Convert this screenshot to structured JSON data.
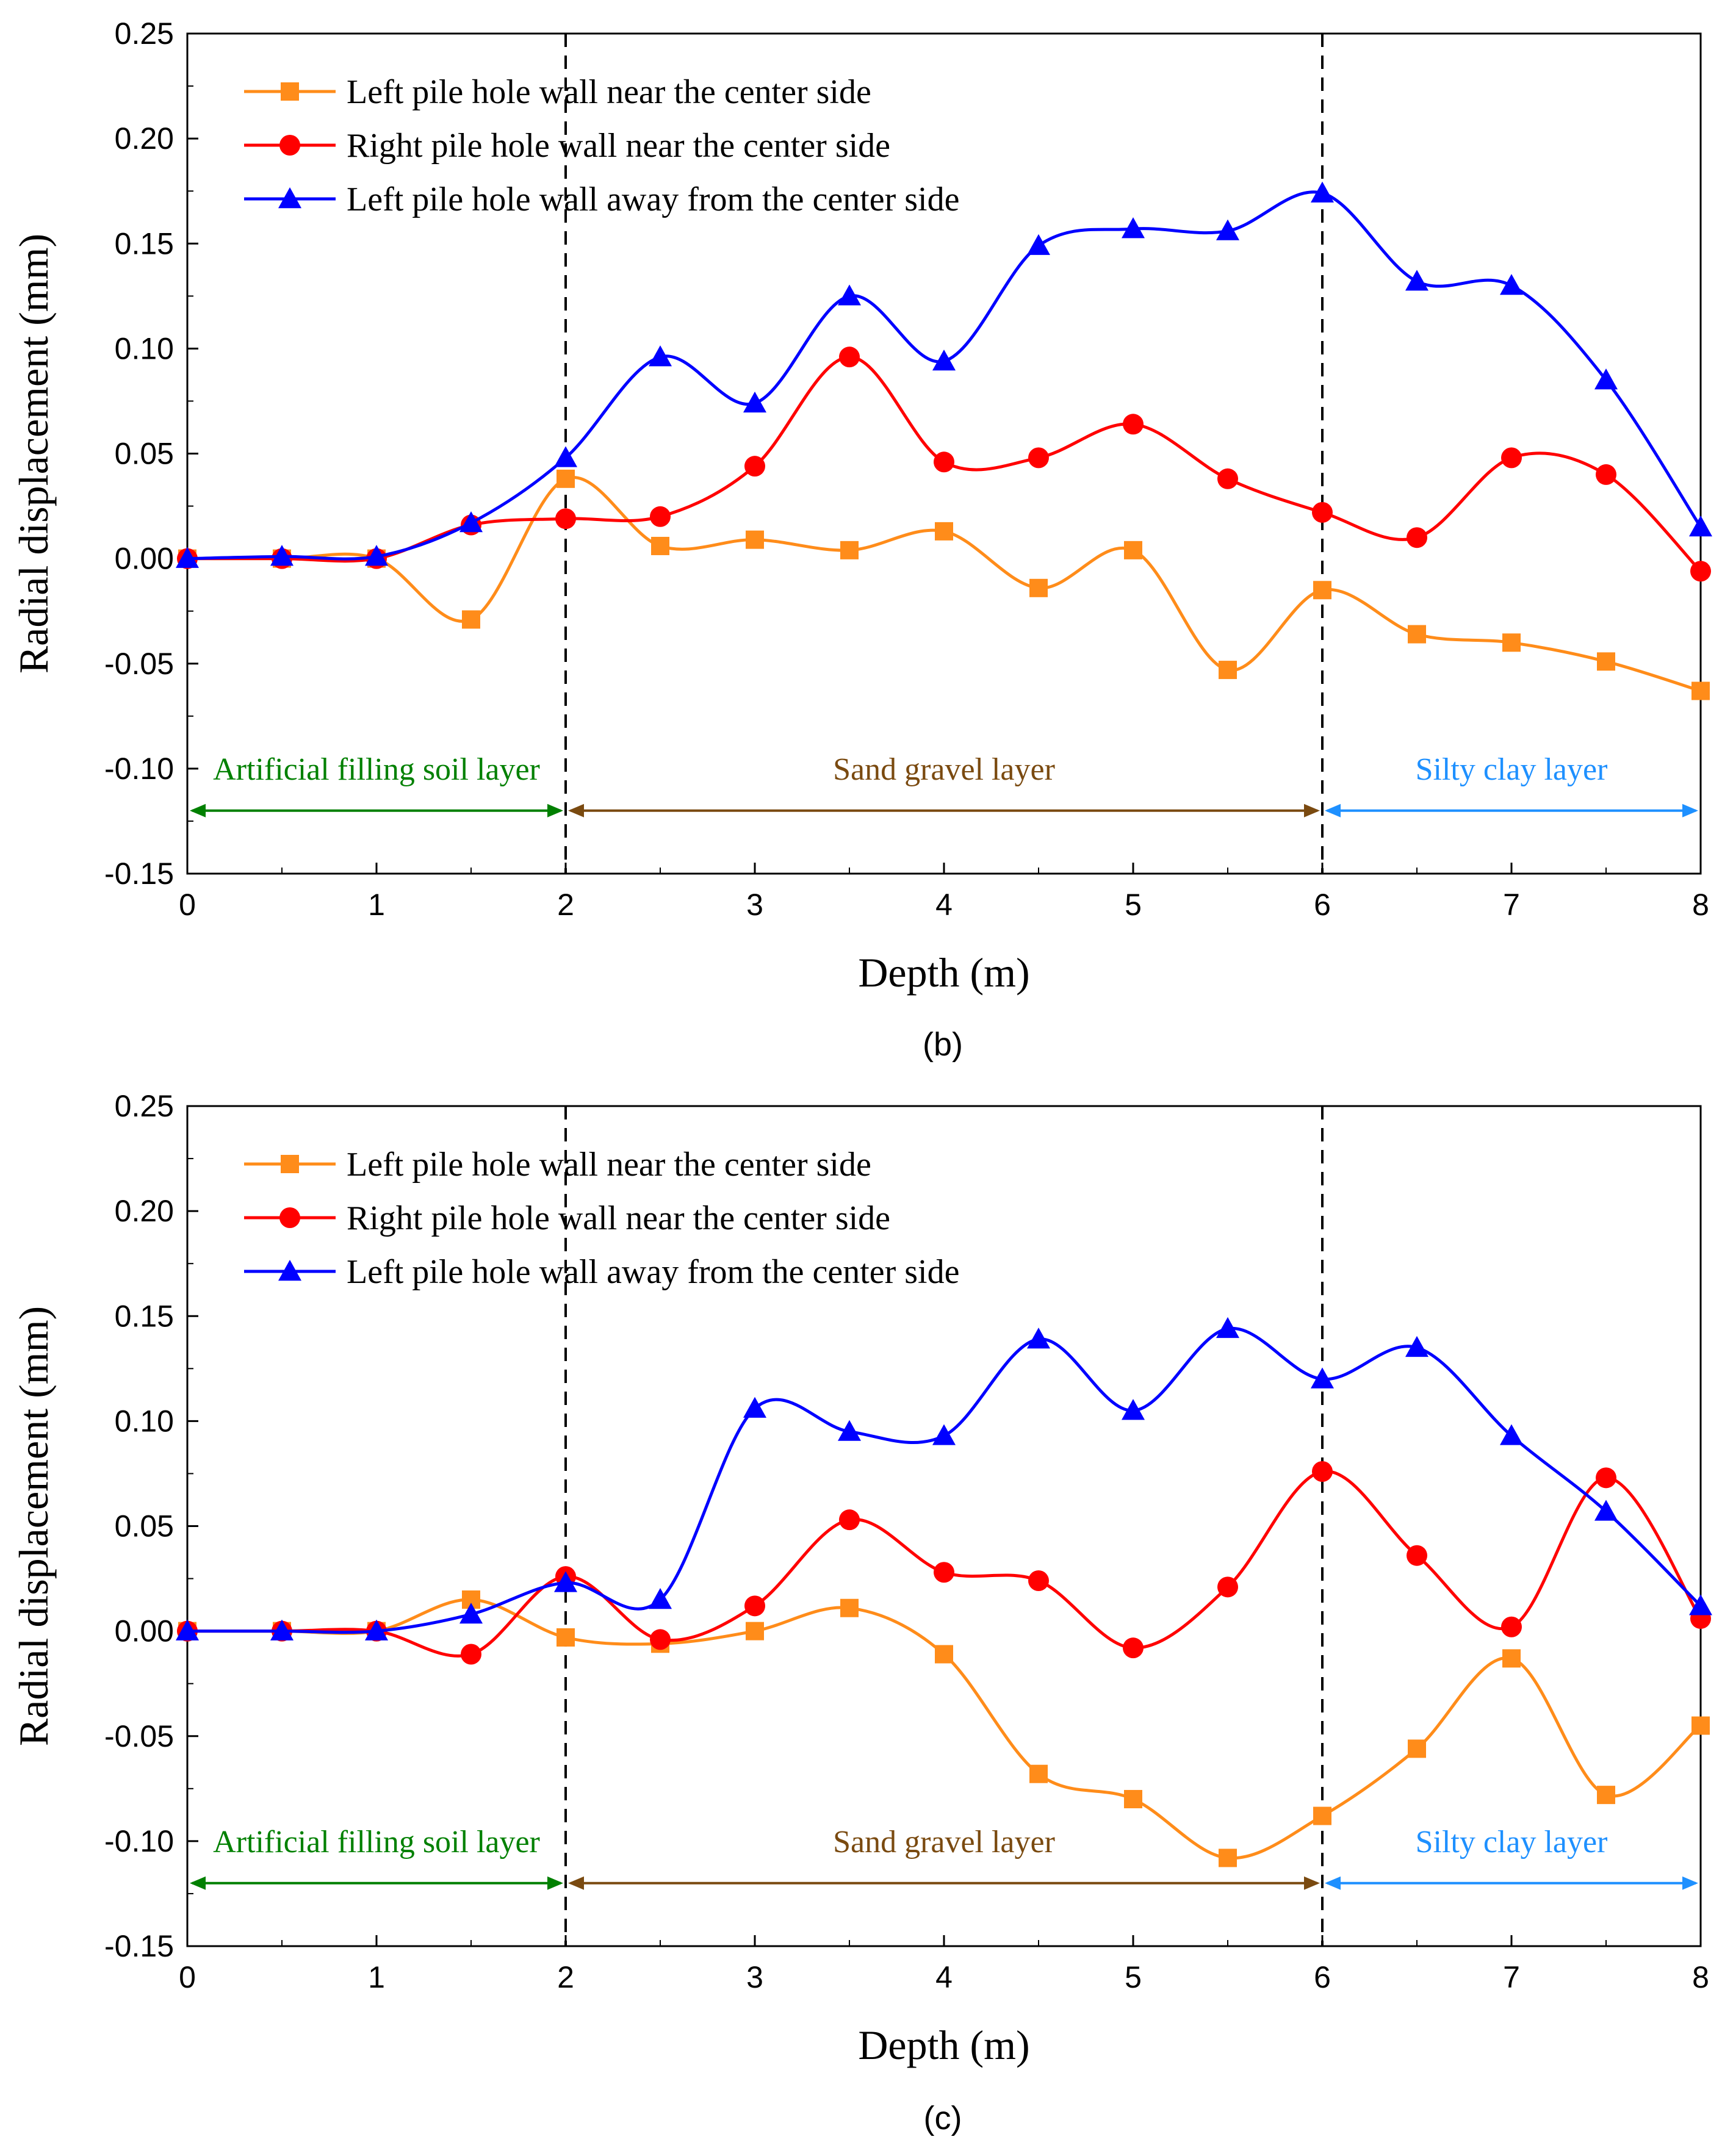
{
  "chart_data": [
    {
      "type": "line",
      "panel_label": "(b)",
      "xlabel": "Depth (m)",
      "ylabel": "Radial displacement (mm)",
      "xlim": [
        0,
        8
      ],
      "ylim": [
        -0.15,
        0.25
      ],
      "x_ticks": [
        0,
        1,
        2,
        3,
        4,
        5,
        6,
        7,
        8
      ],
      "y_ticks": [
        -0.15,
        -0.1,
        -0.05,
        0.0,
        0.05,
        0.1,
        0.15,
        0.2,
        0.25
      ],
      "x": [
        0,
        0.5,
        1,
        1.5,
        2,
        2.5,
        3,
        3.5,
        4,
        4.5,
        5,
        5.5,
        6,
        6.5,
        7,
        7.5,
        8
      ],
      "series": [
        {
          "name": "Left pile hole wall near the center side",
          "color": "#ff8c1a",
          "marker": "square",
          "values": [
            0.0,
            0.0,
            0.0,
            -0.029,
            0.038,
            0.006,
            0.009,
            0.004,
            0.013,
            -0.014,
            0.004,
            -0.053,
            -0.015,
            -0.036,
            -0.04,
            -0.049,
            -0.063
          ]
        },
        {
          "name": "Right pile hole wall near the center side",
          "color": "#ff0000",
          "marker": "circle",
          "values": [
            0.0,
            0.0,
            0.0,
            0.016,
            0.019,
            0.02,
            0.044,
            0.096,
            0.046,
            0.048,
            0.064,
            0.038,
            0.022,
            0.01,
            0.048,
            0.04,
            -0.006
          ]
        },
        {
          "name": "Left pile hole wall away from the center side",
          "color": "#0000ff",
          "marker": "triangle",
          "values": [
            0.0,
            0.001,
            0.001,
            0.017,
            0.048,
            0.096,
            0.074,
            0.125,
            0.094,
            0.149,
            0.157,
            0.156,
            0.174,
            0.132,
            0.13,
            0.085,
            0.015
          ]
        }
      ],
      "boundaries": [
        2,
        6
      ],
      "layers": [
        {
          "label": "Artificial filling soil layer",
          "from": 0,
          "to": 2,
          "color": "#008000"
        },
        {
          "label": "Sand gravel layer",
          "from": 2,
          "to": 6,
          "color": "#7a4a10"
        },
        {
          "label": "Silty clay layer",
          "from": 6,
          "to": 8,
          "color": "#1e90ff"
        }
      ],
      "grid": false,
      "legend_position": "top-left"
    },
    {
      "type": "line",
      "panel_label": "(c)",
      "xlabel": "Depth (m)",
      "ylabel": "Radial displacement (mm)",
      "xlim": [
        0,
        8
      ],
      "ylim": [
        -0.15,
        0.25
      ],
      "x_ticks": [
        0,
        1,
        2,
        3,
        4,
        5,
        6,
        7,
        8
      ],
      "y_ticks": [
        -0.15,
        -0.1,
        -0.05,
        0.0,
        0.05,
        0.1,
        0.15,
        0.2,
        0.25
      ],
      "x": [
        0,
        0.5,
        1,
        1.5,
        2,
        2.5,
        3,
        3.5,
        4,
        4.5,
        5,
        5.5,
        6,
        6.5,
        7,
        7.5,
        8
      ],
      "series": [
        {
          "name": "Left pile hole wall near the center side",
          "color": "#ff8c1a",
          "marker": "square",
          "values": [
            0.0,
            0.0,
            0.0,
            0.015,
            -0.003,
            -0.006,
            0.0,
            0.011,
            -0.011,
            -0.068,
            -0.08,
            -0.108,
            -0.088,
            -0.056,
            -0.013,
            -0.078,
            -0.045
          ]
        },
        {
          "name": "Right pile hole wall near the center side",
          "color": "#ff0000",
          "marker": "circle",
          "values": [
            0.0,
            0.0,
            0.0,
            -0.011,
            0.026,
            -0.004,
            0.012,
            0.053,
            0.028,
            0.024,
            -0.008,
            0.021,
            0.076,
            0.036,
            0.002,
            0.073,
            0.006
          ]
        },
        {
          "name": "Left pile hole wall away from the center side",
          "color": "#0000ff",
          "marker": "triangle",
          "values": [
            0.0,
            0.0,
            0.0,
            0.008,
            0.023,
            0.015,
            0.106,
            0.095,
            0.093,
            0.139,
            0.105,
            0.144,
            0.12,
            0.135,
            0.093,
            0.057,
            0.012
          ]
        }
      ],
      "boundaries": [
        2,
        6
      ],
      "layers": [
        {
          "label": "Artificial filling soil layer",
          "from": 0,
          "to": 2,
          "color": "#008000"
        },
        {
          "label": "Sand gravel layer",
          "from": 2,
          "to": 6,
          "color": "#7a4a10"
        },
        {
          "label": "Silty clay layer",
          "from": 6,
          "to": 8,
          "color": "#1e90ff"
        }
      ],
      "grid": false,
      "legend_position": "top-left"
    }
  ]
}
